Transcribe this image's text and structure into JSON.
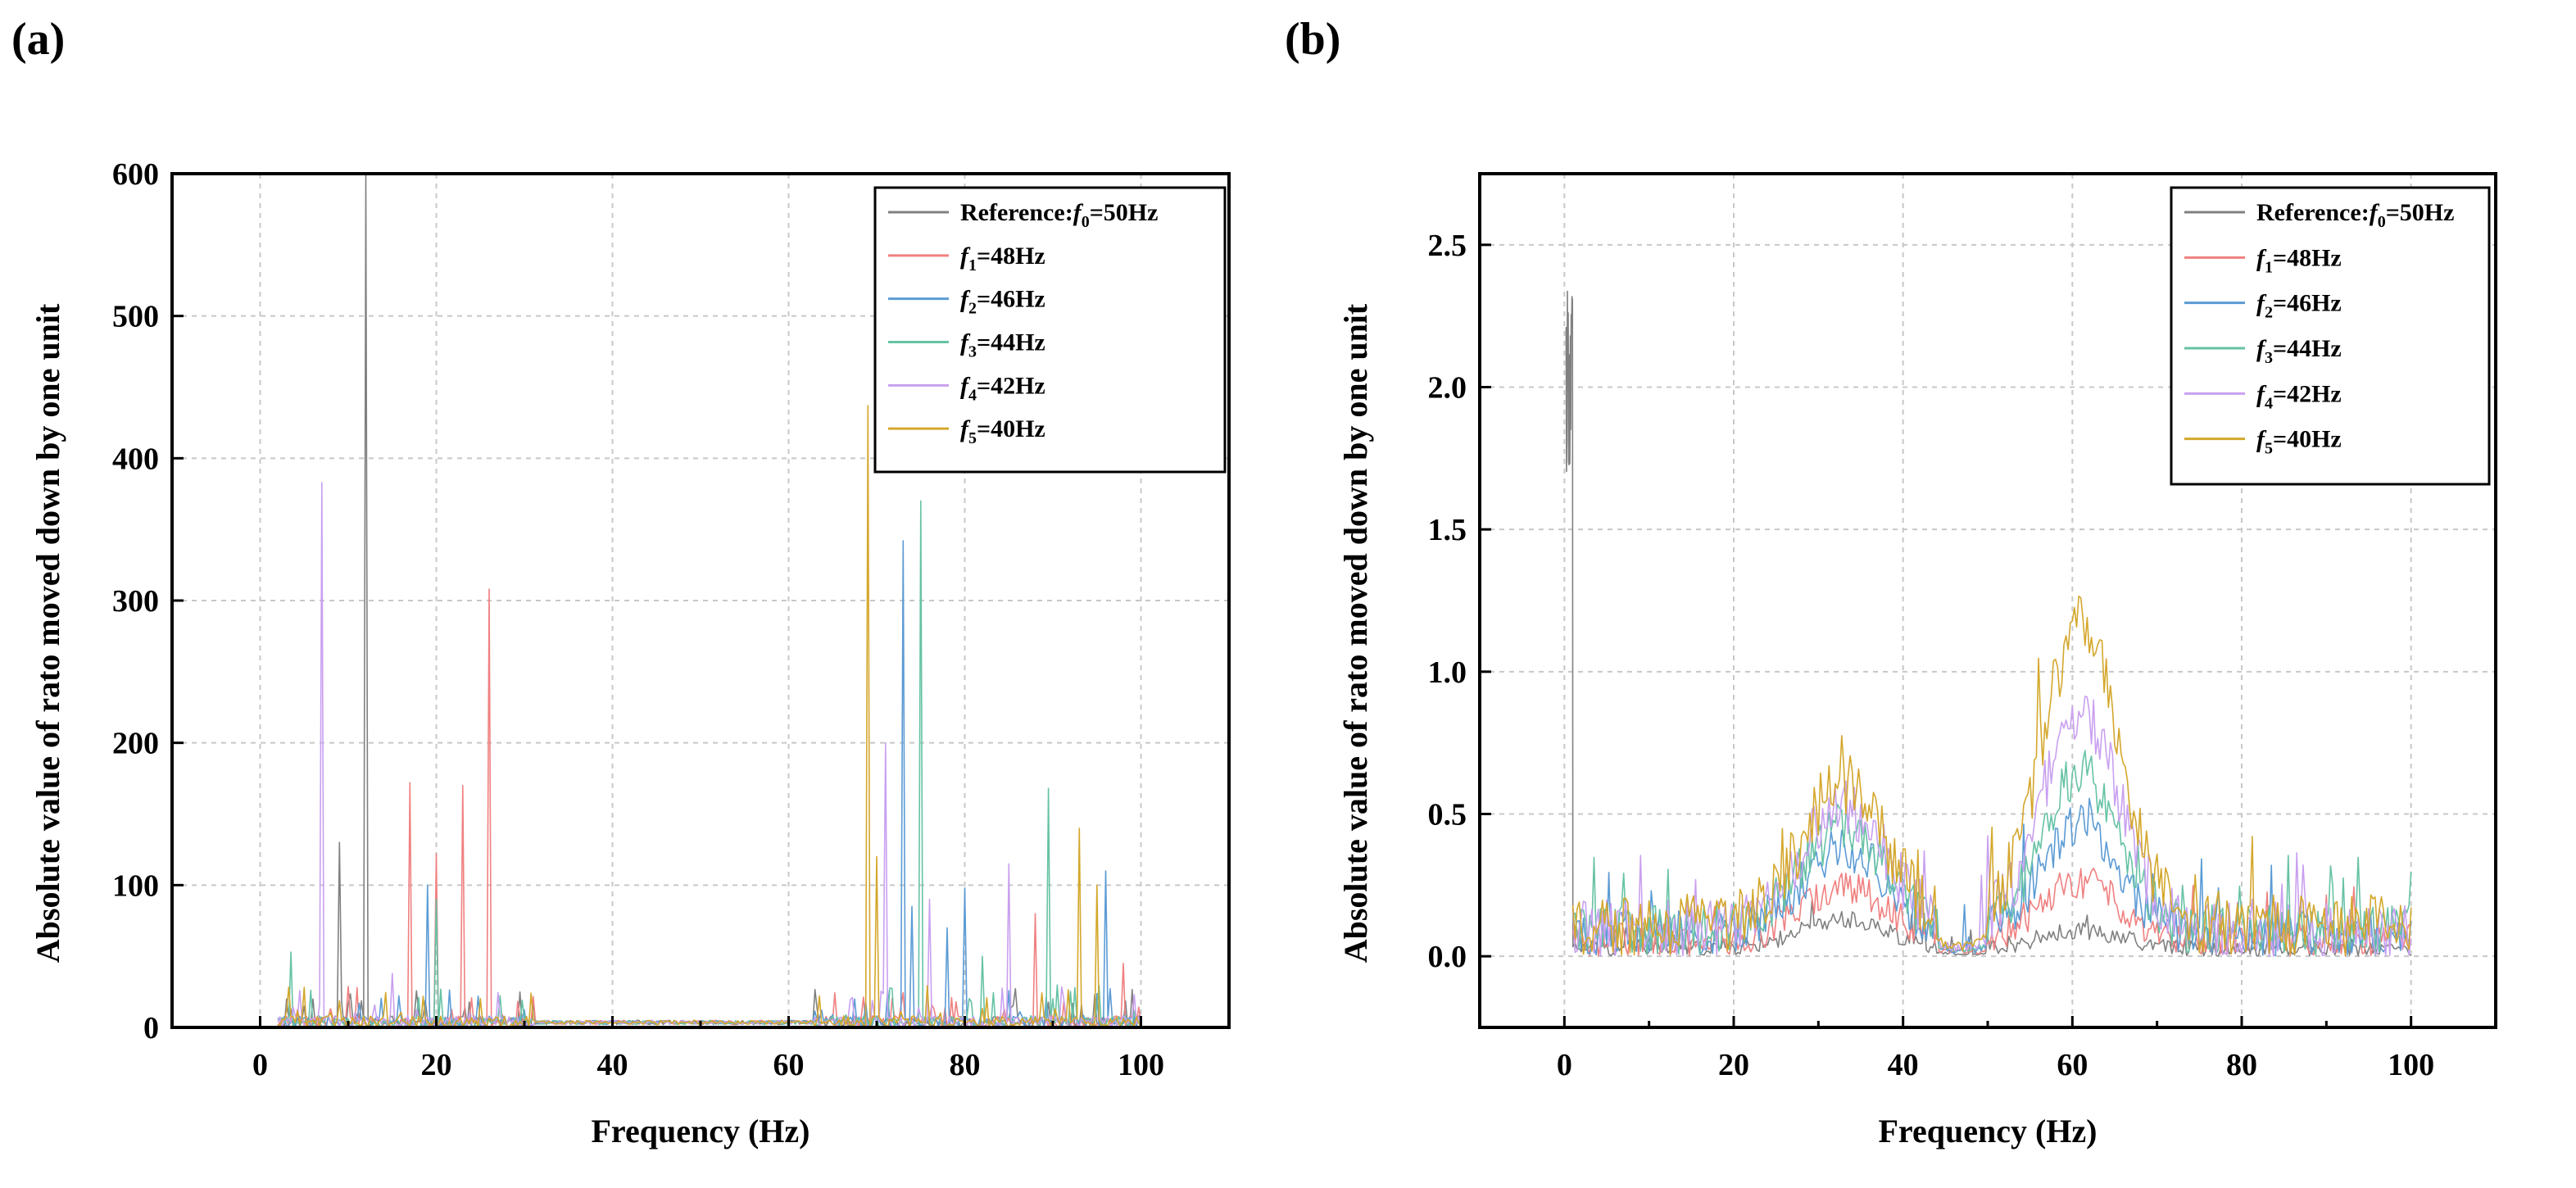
{
  "figure": {
    "panels": [
      {
        "id": "a",
        "label": "(a)"
      },
      {
        "id": "b",
        "label": "(b)"
      }
    ]
  },
  "chart_data": [
    {
      "type": "line",
      "panel": "(a)",
      "title": "",
      "xlabel": "Frequency (Hz)",
      "ylabel": "Absolute value of rato moved down by one unit",
      "xlim": [
        -10,
        110
      ],
      "ylim": [
        0,
        600
      ],
      "xticks": [
        0,
        20,
        40,
        60,
        80,
        100
      ],
      "yticks": [
        0,
        100,
        200,
        300,
        400,
        500,
        600
      ],
      "xtick_labels": [
        "0",
        "20",
        "40",
        "60",
        "80",
        "100"
      ],
      "ytick_labels": [
        "0",
        "100",
        "200",
        "300",
        "400",
        "500",
        "600"
      ],
      "grid": true,
      "legend_position": "top-right",
      "series": [
        {
          "name": "Reference:f0=50Hz",
          "legend_main": "Reference:",
          "legend_sym": "f",
          "legend_sub": "0",
          "legend_rest": "=50Hz",
          "color": "#808080",
          "peaks": [
            [
              9,
              130
            ],
            [
              12,
              600
            ],
            [
              31,
              18
            ],
            [
              3,
              20
            ],
            [
              5,
              15
            ]
          ]
        },
        {
          "name": "f1=48Hz",
          "legend_main": "",
          "legend_sym": "f",
          "legend_sub": "1",
          "legend_rest": "=48Hz",
          "color": "#f08080",
          "peaks": [
            [
              17,
              172
            ],
            [
              20,
              122
            ],
            [
              23,
              170
            ],
            [
              26,
              308
            ],
            [
              88,
              80
            ],
            [
              98,
              45
            ]
          ]
        },
        {
          "name": "f2=46Hz",
          "legend_main": "",
          "legend_sym": "f",
          "legend_sub": "2",
          "legend_rest": "=46Hz",
          "color": "#5b9bd5",
          "peaks": [
            [
              19,
              100
            ],
            [
              73,
              342
            ],
            [
              74,
              85
            ],
            [
              80,
              98
            ],
            [
              96,
              110
            ],
            [
              78,
              70
            ]
          ]
        },
        {
          "name": "f3=44Hz",
          "legend_main": "",
          "legend_sym": "f",
          "legend_sub": "3",
          "legend_rest": "=44Hz",
          "color": "#66c2a5",
          "peaks": [
            [
              3.5,
              53
            ],
            [
              20,
              90
            ],
            [
              75,
              370
            ],
            [
              89.5,
              168
            ],
            [
              82,
              50
            ]
          ]
        },
        {
          "name": "f4=42Hz",
          "legend_main": "",
          "legend_sym": "f",
          "legend_sub": "4",
          "legend_rest": "=42Hz",
          "color": "#c9a0f0",
          "peaks": [
            [
              7,
              383
            ],
            [
              15,
              38
            ],
            [
              71,
              200
            ],
            [
              85,
              115
            ],
            [
              76,
              90
            ]
          ]
        },
        {
          "name": "f5=40Hz",
          "legend_main": "",
          "legend_sym": "f",
          "legend_sub": "5",
          "legend_rest": "=40Hz",
          "color": "#d4a72c",
          "peaks": [
            [
              69,
              437
            ],
            [
              93,
              140
            ],
            [
              95,
              100
            ],
            [
              70,
              120
            ]
          ]
        }
      ]
    },
    {
      "type": "line",
      "panel": "(b)",
      "title": "",
      "xlabel": "Frequency (Hz)",
      "ylabel": "Absolute value of rato moved down by one unit",
      "xlim": [
        -10,
        110
      ],
      "ylim": [
        -0.25,
        2.75
      ],
      "xticks": [
        0,
        20,
        40,
        60,
        80,
        100
      ],
      "yticks": [
        0.0,
        0.5,
        1.0,
        1.5,
        2.0,
        2.5
      ],
      "xtick_labels": [
        "0",
        "20",
        "40",
        "60",
        "80",
        "100"
      ],
      "ytick_labels": [
        "0.0",
        "0.5",
        "1.0",
        "1.5",
        "2.0",
        "2.5"
      ],
      "grid": true,
      "legend_position": "top-right",
      "series": [
        {
          "name": "Reference:f0=50Hz",
          "legend_main": "Reference:",
          "legend_sym": "f",
          "legend_sub": "0",
          "legend_rest": "=50Hz",
          "color": "#808080",
          "envelope": {
            "hump1": 0.1,
            "hump2": 0.06,
            "noise": 0.06
          },
          "spike": [
            0.5,
            2.38
          ]
        },
        {
          "name": "f1=48Hz",
          "legend_main": "",
          "legend_sym": "f",
          "legend_sub": "1",
          "legend_rest": "=48Hz",
          "color": "#f08080",
          "envelope": {
            "hump1": 0.18,
            "hump2": 0.2,
            "noise": 0.12
          }
        },
        {
          "name": "f2=46Hz",
          "legend_main": "",
          "legend_sym": "f",
          "legend_sub": "2",
          "legend_rest": "=46Hz",
          "color": "#5b9bd5",
          "envelope": {
            "hump1": 0.3,
            "hump2": 0.38,
            "noise": 0.16
          }
        },
        {
          "name": "f3=44Hz",
          "legend_main": "",
          "legend_sym": "f",
          "legend_sub": "3",
          "legend_rest": "=44Hz",
          "color": "#66c2a5",
          "envelope": {
            "hump1": 0.36,
            "hump2": 0.55,
            "noise": 0.18
          }
        },
        {
          "name": "f4=42Hz",
          "legend_main": "",
          "legend_sym": "f",
          "legend_sub": "4",
          "legend_rest": "=42Hz",
          "color": "#c9a0f0",
          "envelope": {
            "hump1": 0.42,
            "hump2": 0.75,
            "noise": 0.2
          }
        },
        {
          "name": "f5=40Hz",
          "legend_main": "",
          "legend_sym": "f",
          "legend_sub": "5",
          "legend_rest": "=40Hz",
          "color": "#d4a72c",
          "envelope": {
            "hump1": 0.5,
            "hump2": 1.05,
            "noise": 0.22
          }
        }
      ]
    }
  ]
}
